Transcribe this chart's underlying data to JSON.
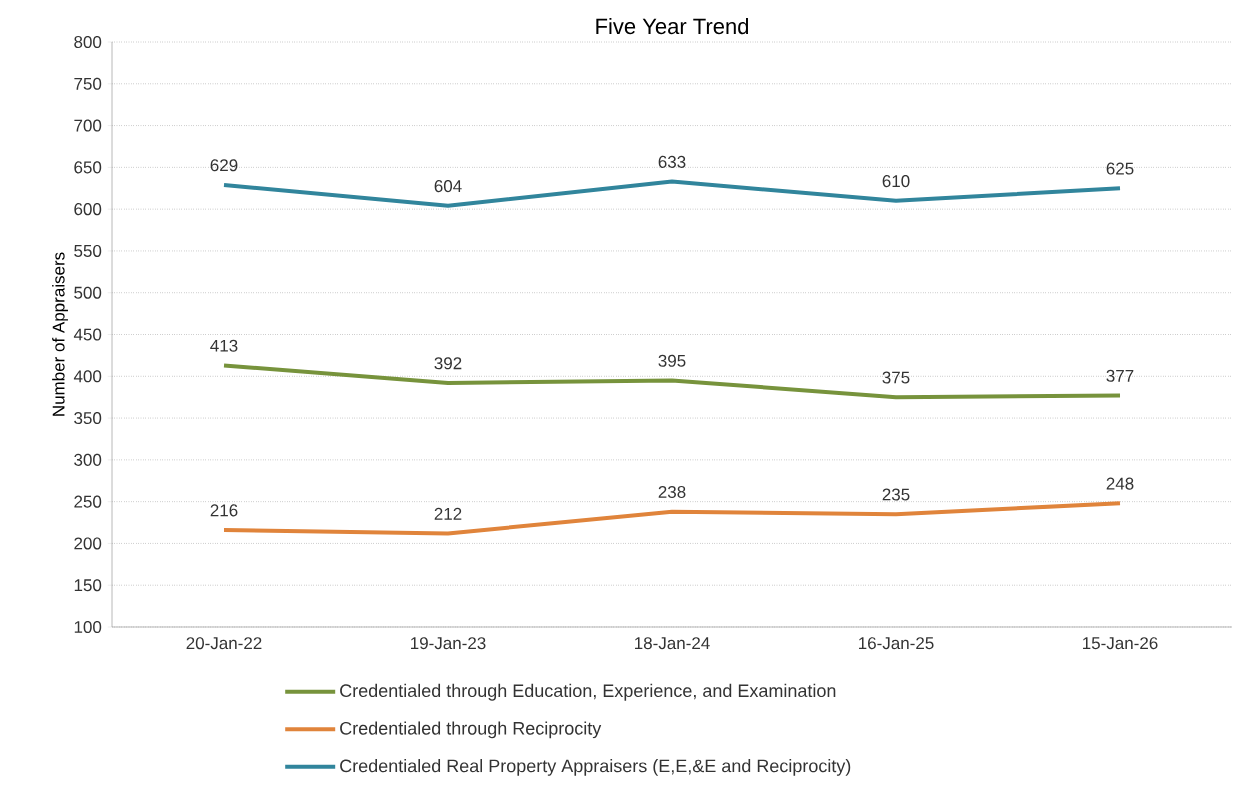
{
  "chart_data": {
    "type": "line",
    "title": "Five Year Trend",
    "ylabel": "Number of Appraisers",
    "categories": [
      "20-Jan-22",
      "19-Jan-23",
      "18-Jan-24",
      "16-Jan-25",
      "15-Jan-26"
    ],
    "series": [
      {
        "name": "Credentialed through Education, Experience, and Examination",
        "color": "#77933c",
        "values": [
          413,
          392,
          395,
          375,
          377
        ]
      },
      {
        "name": "Credentialed through Reciprocity",
        "color": "#e0843b",
        "values": [
          216,
          212,
          238,
          235,
          248
        ]
      },
      {
        "name": "Credentialed Real Property Appraisers (E,E,&E and Reciprocity)",
        "color": "#31859c",
        "values": [
          629,
          604,
          633,
          610,
          625
        ]
      }
    ],
    "ylim": [
      100,
      800
    ],
    "yticks": [
      100,
      150,
      200,
      250,
      300,
      350,
      400,
      450,
      500,
      550,
      600,
      650,
      700,
      750,
      800
    ],
    "grid": "y",
    "legend": "bottom",
    "data_labels": true,
    "marker": "none",
    "line_style": "solid"
  }
}
